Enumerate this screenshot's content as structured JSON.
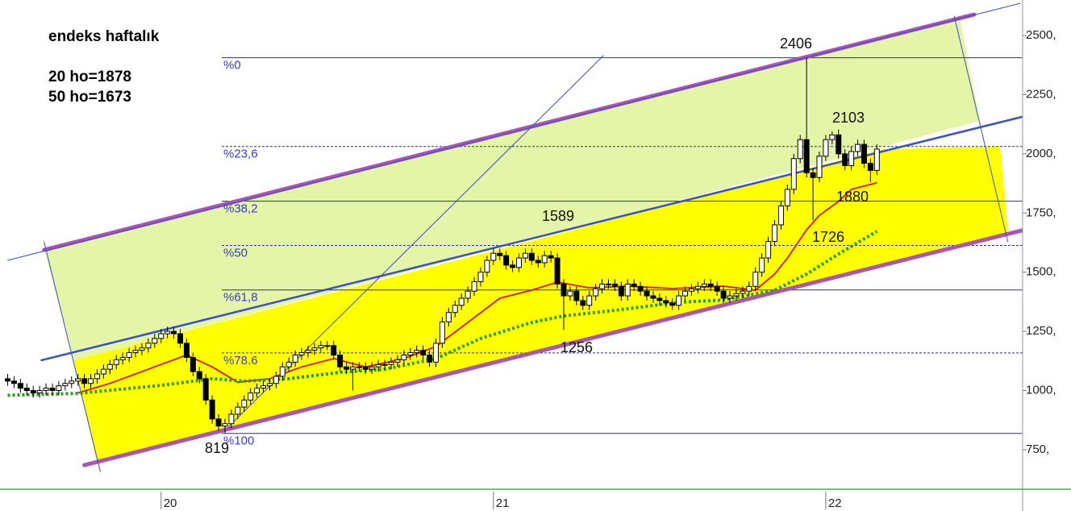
{
  "chart_data": {
    "type": "candlestick",
    "texts": [
      "endeks haftalık",
      "20 ho=1878",
      "50 ho=1673"
    ],
    "annotations": [
      2406,
      2103,
      1880,
      1726,
      1589,
      1256,
      819
    ],
    "xlim": [
      -25.2,
      134.8
    ],
    "ylim": [
      583,
      2650
    ],
    "xticks": [
      {
        "value": 0,
        "label": "20"
      },
      {
        "value": 52,
        "label": "21"
      },
      {
        "value": 104,
        "label": "22"
      }
    ],
    "yticks": [
      {
        "value": 750,
        "label": "750,"
      },
      {
        "value": 1000,
        "label": "1000,"
      },
      {
        "value": 1250,
        "label": "1250,"
      },
      {
        "value": 1500,
        "label": "1500,"
      },
      {
        "value": 1750,
        "label": "1750,"
      },
      {
        "value": 2000,
        "label": "2000,"
      },
      {
        "value": 2250,
        "label": "2250,"
      },
      {
        "value": 2500,
        "label": "2500,"
      }
    ],
    "fib": [
      {
        "value": 2406,
        "label": "%0"
      },
      {
        "value": 2031,
        "label": "%23,6"
      },
      {
        "value": 1800,
        "label": "%38,2"
      },
      {
        "value": 1613,
        "label": "%50"
      },
      {
        "value": 1425,
        "label": "%61,8"
      },
      {
        "value": 1159,
        "label": "%78.6"
      },
      {
        "value": 819,
        "label": "%100"
      }
    ],
    "fib_color": "#2a2aa0",
    "channels": [
      {
        "x": [
          -18.3,
          127.2
        ],
        "values": [
          1594,
          2588.5
        ],
        "color": "#a855b5",
        "width": 5
      },
      {
        "x": [
          -12,
          136.1
        ],
        "values": [
          685,
          1686
        ],
        "color": "#a855b5",
        "width": 5
      },
      {
        "x": [
          -18.7,
          135.7
        ],
        "values": [
          1128,
          2163
        ],
        "color": "#3b4fc8",
        "width": 2.5
      },
      {
        "x": [
          -24,
          134.4
        ],
        "values": [
          1550,
          2636
        ],
        "color": "#3b4fc8",
        "width": 1
      },
      {
        "x": [
          10.5,
          69.2
        ],
        "values": [
          845,
          2415
        ],
        "color": "#3b4fc8",
        "width": 1
      },
      {
        "x": [
          -18.3,
          -9.5
        ],
        "values": [
          1628,
          658
        ],
        "color": "#3b4fc8",
        "width": 1
      },
      {
        "x": [
          124.1,
          132.5
        ],
        "values": [
          2582,
          1628
        ],
        "color": "#3b4fc8",
        "width": 1
      }
    ],
    "candles": {
      "x": [
        -24,
        -23,
        -22,
        -21,
        -20,
        -19,
        -18,
        -17,
        -16,
        -15,
        -14,
        -13,
        -12,
        -11,
        -10,
        -9,
        -8,
        -7,
        -6,
        -5,
        -4,
        -3,
        -2,
        -1,
        0,
        1,
        2,
        3,
        4,
        5,
        6,
        7,
        8,
        9,
        10,
        11,
        12,
        13,
        14,
        15,
        16,
        17,
        18,
        19,
        20,
        21,
        22,
        23,
        24,
        25,
        26,
        27,
        28,
        29,
        30,
        31,
        32,
        33,
        34,
        35,
        36,
        37,
        38,
        39,
        40,
        41,
        42,
        43,
        44,
        45,
        46,
        47,
        48,
        49,
        50,
        51,
        52,
        53,
        54,
        55,
        56,
        57,
        58,
        59,
        60,
        61,
        62,
        63,
        64,
        65,
        66,
        67,
        68,
        69,
        70,
        71,
        72,
        73,
        74,
        75,
        76,
        77,
        78,
        79,
        80,
        81,
        82,
        83,
        84,
        85,
        86,
        87,
        88,
        89,
        90,
        91,
        92,
        93,
        94,
        95,
        96,
        97,
        98,
        99,
        100,
        101,
        102,
        103,
        104,
        105,
        106,
        107,
        108,
        109,
        110,
        111,
        112
      ],
      "open": [
        1050,
        1040,
        1030,
        1010,
        1000,
        990,
        1000,
        1010,
        1000,
        1020,
        1030,
        1040,
        1050,
        1030,
        1050,
        1070,
        1090,
        1110,
        1130,
        1140,
        1160,
        1170,
        1180,
        1200,
        1220,
        1240,
        1250,
        1240,
        1200,
        1140,
        1080,
        1050,
        960,
        880,
        850,
        860,
        900,
        930,
        960,
        990,
        1010,
        1020,
        1030,
        1060,
        1100,
        1120,
        1150,
        1160,
        1170,
        1180,
        1190,
        1190,
        1150,
        1100,
        1090,
        1100,
        1100,
        1090,
        1100,
        1110,
        1110,
        1120,
        1130,
        1150,
        1160,
        1170,
        1150,
        1120,
        1200,
        1290,
        1330,
        1360,
        1390,
        1420,
        1460,
        1500,
        1550,
        1580,
        1570,
        1530,
        1520,
        1560,
        1580,
        1550,
        1540,
        1570,
        1560,
        1450,
        1400,
        1420,
        1380,
        1360,
        1400,
        1430,
        1450,
        1450,
        1440,
        1400,
        1450,
        1440,
        1420,
        1400,
        1390,
        1380,
        1370,
        1360,
        1400,
        1420,
        1430,
        1440,
        1450,
        1440,
        1420,
        1390,
        1400,
        1410,
        1420,
        1440,
        1500,
        1560,
        1630,
        1700,
        1780,
        1850,
        1980,
        2060,
        1920,
        1900,
        1990,
        2060,
        2080,
        2000,
        1950,
        2010,
        2040,
        1960,
        1930
      ],
      "high": [
        1070,
        1060,
        1050,
        1030,
        1020,
        1020,
        1030,
        1030,
        1040,
        1050,
        1060,
        1070,
        1070,
        1070,
        1090,
        1110,
        1130,
        1150,
        1160,
        1180,
        1190,
        1200,
        1220,
        1240,
        1260,
        1270,
        1270,
        1260,
        1220,
        1160,
        1100,
        1070,
        980,
        900,
        880,
        920,
        950,
        980,
        1010,
        1030,
        1040,
        1050,
        1080,
        1120,
        1140,
        1170,
        1180,
        1190,
        1200,
        1210,
        1210,
        1210,
        1170,
        1120,
        1120,
        1120,
        1120,
        1120,
        1130,
        1130,
        1140,
        1150,
        1170,
        1180,
        1190,
        1190,
        1170,
        1220,
        1310,
        1350,
        1380,
        1410,
        1440,
        1480,
        1520,
        1570,
        1600,
        1600,
        1590,
        1550,
        1580,
        1600,
        1600,
        1570,
        1590,
        1590,
        1580,
        1470,
        1440,
        1440,
        1400,
        1420,
        1450,
        1470,
        1470,
        1470,
        1460,
        1470,
        1470,
        1460,
        1440,
        1420,
        1410,
        1400,
        1390,
        1420,
        1440,
        1450,
        1460,
        1470,
        1470,
        1460,
        1440,
        1420,
        1430,
        1440,
        1460,
        1520,
        1580,
        1650,
        1720,
        1800,
        1870,
        2000,
        2080,
        2406,
        1940,
        2010,
        2080,
        2095,
        2103,
        2020,
        2030,
        2060,
        2060,
        1980,
        2040
      ],
      "low": [
        1020,
        1010,
        990,
        980,
        970,
        970,
        980,
        980,
        980,
        1000,
        1010,
        1020,
        1010,
        1010,
        1030,
        1050,
        1070,
        1090,
        1110,
        1120,
        1140,
        1150,
        1160,
        1180,
        1200,
        1220,
        1220,
        1180,
        1120,
        1060,
        1030,
        940,
        860,
        830,
        819,
        840,
        880,
        910,
        940,
        970,
        990,
        1000,
        1010,
        1040,
        1080,
        1100,
        1130,
        1140,
        1150,
        1160,
        1170,
        1130,
        1080,
        1070,
        1000,
        1080,
        1070,
        1070,
        1080,
        1090,
        1090,
        1100,
        1110,
        1130,
        1140,
        1130,
        1100,
        1100,
        1180,
        1270,
        1310,
        1340,
        1370,
        1400,
        1440,
        1480,
        1530,
        1550,
        1510,
        1500,
        1500,
        1540,
        1530,
        1520,
        1520,
        1540,
        1430,
        1256,
        1380,
        1360,
        1340,
        1340,
        1380,
        1410,
        1430,
        1420,
        1380,
        1380,
        1420,
        1400,
        1380,
        1370,
        1360,
        1350,
        1340,
        1340,
        1380,
        1400,
        1410,
        1420,
        1420,
        1400,
        1370,
        1370,
        1380,
        1390,
        1400,
        1420,
        1480,
        1540,
        1610,
        1680,
        1760,
        1830,
        1960,
        1900,
        1720,
        1880,
        1970,
        2040,
        1980,
        1930,
        1930,
        1990,
        1940,
        1880,
        1910
      ],
      "close": [
        1040,
        1030,
        1010,
        1000,
        990,
        1000,
        1010,
        1000,
        1020,
        1030,
        1040,
        1050,
        1030,
        1050,
        1070,
        1090,
        1110,
        1130,
        1140,
        1160,
        1170,
        1180,
        1200,
        1220,
        1240,
        1250,
        1240,
        1200,
        1140,
        1080,
        1050,
        960,
        880,
        850,
        860,
        900,
        930,
        960,
        990,
        1010,
        1020,
        1030,
        1060,
        1100,
        1120,
        1150,
        1160,
        1170,
        1180,
        1190,
        1190,
        1150,
        1100,
        1090,
        1100,
        1100,
        1090,
        1100,
        1110,
        1110,
        1120,
        1130,
        1150,
        1160,
        1170,
        1150,
        1120,
        1200,
        1290,
        1330,
        1360,
        1390,
        1420,
        1460,
        1500,
        1550,
        1580,
        1570,
        1530,
        1520,
        1560,
        1580,
        1550,
        1540,
        1570,
        1560,
        1450,
        1400,
        1420,
        1380,
        1360,
        1400,
        1430,
        1450,
        1450,
        1440,
        1400,
        1450,
        1440,
        1420,
        1400,
        1390,
        1380,
        1370,
        1360,
        1400,
        1420,
        1430,
        1440,
        1450,
        1440,
        1420,
        1390,
        1400,
        1410,
        1420,
        1440,
        1500,
        1560,
        1630,
        1700,
        1780,
        1850,
        1980,
        2060,
        1920,
        1900,
        1990,
        2060,
        2080,
        2000,
        1950,
        2010,
        2040,
        1960,
        1930,
        2020
      ]
    },
    "averages": [
      {
        "color": "#e01010",
        "dashed": false,
        "x": [
          -13,
          -8,
          -4,
          0,
          4,
          8,
          12,
          17,
          22,
          27,
          32,
          38,
          43,
          48,
          53,
          58,
          62,
          67,
          73,
          80,
          88,
          93,
          96,
          98,
          101,
          103,
          106,
          108,
          112
        ],
        "values": [
          990,
          1030,
          1070,
          1110,
          1150,
          1100,
          1035,
          1050,
          1100,
          1135,
          1100,
          1135,
          1186,
          1288,
          1390,
          1424,
          1458,
          1434,
          1441,
          1431,
          1441,
          1424,
          1492,
          1560,
          1679,
          1740,
          1799,
          1850,
          1878
        ]
      },
      {
        "color": "#2a9a1a",
        "dashed": true,
        "x": [
          -24,
          -13,
          0,
          8,
          13,
          20,
          28,
          35,
          43,
          50,
          58,
          63,
          71,
          81,
          88,
          96,
          101,
          106,
          112
        ],
        "values": [
          980,
          988,
          1022,
          1050,
          1040,
          1050,
          1077,
          1090,
          1135,
          1220,
          1288,
          1315,
          1339,
          1373,
          1383,
          1424,
          1492,
          1577,
          1673
        ]
      }
    ]
  }
}
